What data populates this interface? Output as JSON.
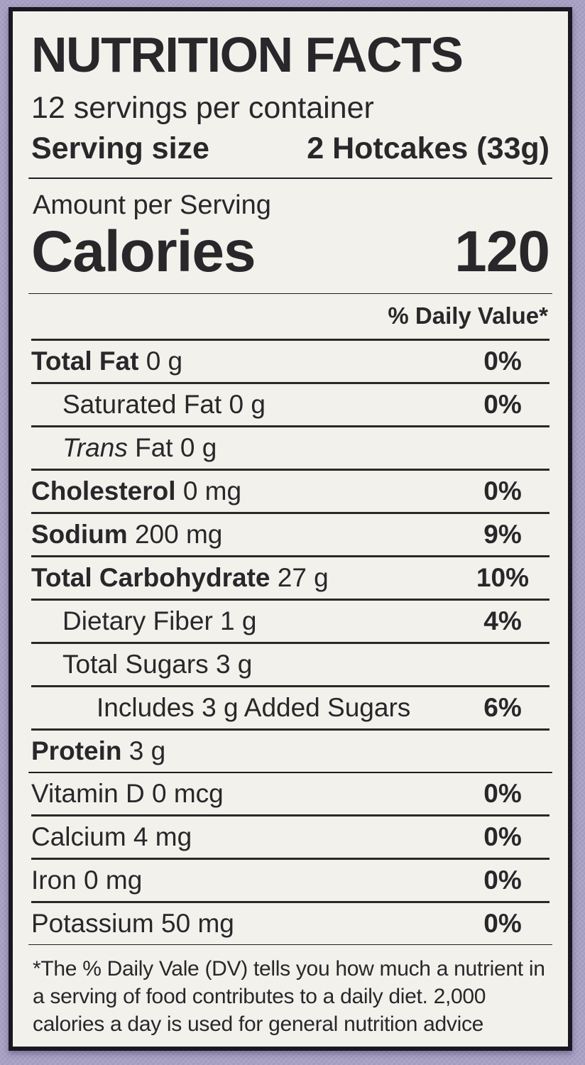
{
  "header": {
    "title": "NUTRITION FACTS",
    "servings_per_container": "12 servings per container",
    "serving_size_label": "Serving size",
    "serving_size_value": "2 Hotcakes (33g)"
  },
  "calories": {
    "amount_label": "Amount per Serving",
    "label": "Calories",
    "value": "120"
  },
  "daily_value_header": "% Daily Value*",
  "rows": [
    {
      "bold": "Total Fat",
      "rest": " 0 g",
      "dv": "0%"
    },
    {
      "rest": "Saturated Fat 0 g",
      "dv": "0%"
    },
    {
      "italic": "Trans",
      "rest": " Fat 0 g",
      "dv": ""
    },
    {
      "bold": "Cholesterol",
      "rest": " 0 mg",
      "dv": "0%"
    },
    {
      "bold": "Sodium",
      "rest": " 200 mg",
      "dv": "9%"
    },
    {
      "bold": "Total Carbohydrate",
      "rest": " 27 g",
      "dv": "10%"
    },
    {
      "rest": "Dietary Fiber 1 g",
      "dv": "4%"
    },
    {
      "rest": "Total Sugars 3 g",
      "dv": ""
    },
    {
      "rest": "Includes 3 g Added Sugars",
      "dv": "6%"
    },
    {
      "bold": "Protein",
      "rest": " 3 g",
      "dv": ""
    }
  ],
  "vitamins": [
    {
      "rest": "Vitamin D 0 mcg",
      "dv": "0%"
    },
    {
      "rest": "Calcium 4 mg",
      "dv": "0%"
    },
    {
      "rest": "Iron 0 mg",
      "dv": "0%"
    },
    {
      "rest": "Potassium 50 mg",
      "dv": "0%"
    }
  ],
  "footnote": "*The % Daily Vale (DV) tells you how much a nutrient in a serving of food contributes to a daily diet. 2,000 calories a day is used for general nutrition advice",
  "colors": {
    "background_purple": "#a9a2c4",
    "label_background": "#f2f1ec",
    "text": "#29272a",
    "border": "#1a1820"
  }
}
